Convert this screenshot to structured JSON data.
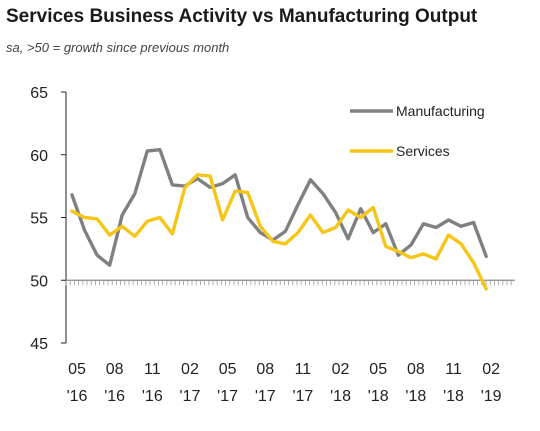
{
  "chart_data": {
    "type": "line",
    "title": "Services Business Activity vs Manufacturing Output",
    "subtitle": "sa, >50 = growth since previous month",
    "xlabel": "",
    "ylabel": "",
    "ylim": [
      45,
      65
    ],
    "yticks": [
      "65",
      "60",
      "55",
      "50",
      "45"
    ],
    "reference_line": 50,
    "x_tick_labels": [
      {
        "month": "05",
        "year": "'16"
      },
      {
        "month": "08",
        "year": "'16"
      },
      {
        "month": "11",
        "year": "'16"
      },
      {
        "month": "02",
        "year": "'17"
      },
      {
        "month": "05",
        "year": "'17"
      },
      {
        "month": "08",
        "year": "'17"
      },
      {
        "month": "11",
        "year": "'17"
      },
      {
        "month": "02",
        "year": "'18"
      },
      {
        "month": "05",
        "year": "'18"
      },
      {
        "month": "08",
        "year": "'18"
      },
      {
        "month": "11",
        "year": "'18"
      },
      {
        "month": "02",
        "year": "'19"
      }
    ],
    "x": [
      "2016-05",
      "2016-06",
      "2016-07",
      "2016-08",
      "2016-09",
      "2016-10",
      "2016-11",
      "2016-12",
      "2017-01",
      "2017-02",
      "2017-03",
      "2017-04",
      "2017-05",
      "2017-06",
      "2017-07",
      "2017-08",
      "2017-09",
      "2017-10",
      "2017-11",
      "2017-12",
      "2018-01",
      "2018-02",
      "2018-03",
      "2018-04",
      "2018-05",
      "2018-06",
      "2018-07",
      "2018-08",
      "2018-09",
      "2018-10",
      "2018-11",
      "2018-12",
      "2019-01",
      "2019-02"
    ],
    "series": [
      {
        "name": "Manufacturing",
        "color": "#808080",
        "values": [
          56.8,
          54.0,
          52.0,
          51.2,
          55.2,
          56.9,
          60.3,
          60.4,
          57.6,
          57.5,
          58.1,
          57.4,
          57.7,
          58.4,
          55.0,
          53.8,
          53.2,
          53.9,
          56.0,
          58.0,
          56.9,
          55.4,
          53.3,
          55.7,
          53.8,
          54.5,
          52.0,
          52.8,
          54.5,
          54.2,
          54.8,
          54.3,
          54.6,
          51.9
        ]
      },
      {
        "name": "Services",
        "color": "#F5C518",
        "values": [
          55.5,
          55.0,
          54.9,
          53.6,
          54.3,
          53.5,
          54.7,
          55.0,
          53.7,
          57.4,
          58.4,
          58.3,
          54.8,
          57.1,
          57.0,
          54.3,
          53.1,
          52.9,
          53.8,
          55.2,
          53.8,
          54.2,
          55.6,
          55.0,
          55.8,
          52.7,
          52.3,
          51.8,
          52.1,
          51.7,
          53.6,
          52.9,
          51.4,
          49.3
        ]
      }
    ],
    "legend_placement": "top-right",
    "grid": false
  }
}
